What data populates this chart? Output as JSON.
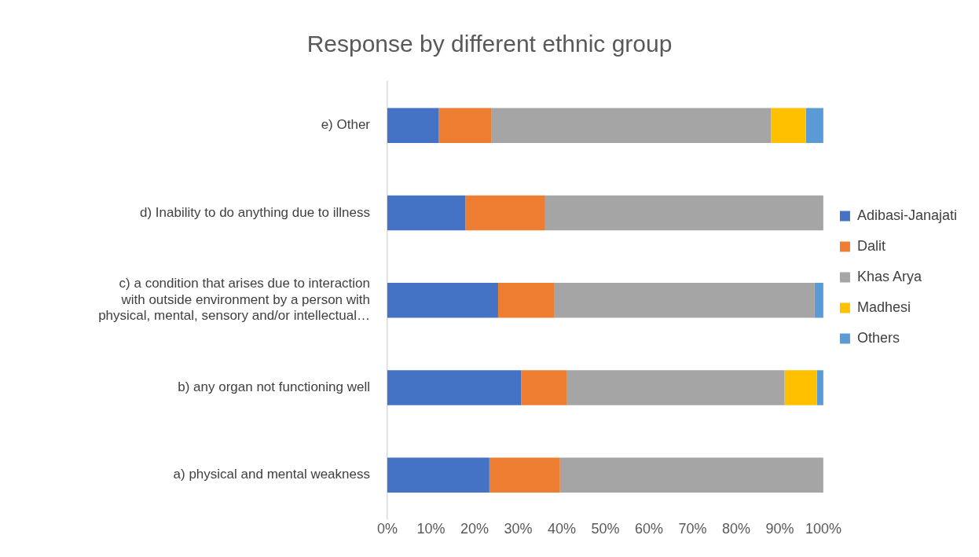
{
  "chart_data": {
    "type": "bar",
    "orientation": "horizontal",
    "stacked": true,
    "title": "Response by different ethnic group",
    "categories": [
      "e) Other",
      "d) Inability to do anything due to illness",
      "c) a condition that arises due to interaction with outside environment by a person with physical, mental, sensory and/or intellectual…",
      "b) any organ not functioning well",
      "a) physical and mental weakness"
    ],
    "series": [
      {
        "name": "Adibasi-Janajati",
        "color": "#4472c4",
        "values": [
          11.8,
          17.9,
          25.4,
          30.7,
          23.4
        ]
      },
      {
        "name": "Dalit",
        "color": "#ed7d31",
        "values": [
          12.0,
          18.3,
          12.8,
          10.4,
          16.2
        ]
      },
      {
        "name": "Khas Arya",
        "color": "#a5a5a5",
        "values": [
          64.2,
          63.8,
          59.8,
          50.0,
          60.4
        ]
      },
      {
        "name": "Madhesi",
        "color": "#ffc000",
        "values": [
          8.0,
          null,
          null,
          7.4,
          null
        ]
      },
      {
        "name": "Others",
        "color": "#5b9bd5",
        "values": [
          4.0,
          null,
          2.0,
          1.5,
          null
        ]
      }
    ],
    "xlim": [
      0,
      100
    ],
    "xticks": [
      {
        "value": 0,
        "label": "0%"
      },
      {
        "value": 10,
        "label": "10%"
      },
      {
        "value": 20,
        "label": "20%"
      },
      {
        "value": 30,
        "label": "30%"
      },
      {
        "value": 40,
        "label": "40%"
      },
      {
        "value": 50,
        "label": "50%"
      },
      {
        "value": 60,
        "label": "60%"
      },
      {
        "value": 70,
        "label": "70%"
      },
      {
        "value": 80,
        "label": "80%"
      },
      {
        "value": 90,
        "label": "90%"
      },
      {
        "value": 100,
        "label": "100%"
      }
    ],
    "grid": false,
    "legend": "right"
  }
}
